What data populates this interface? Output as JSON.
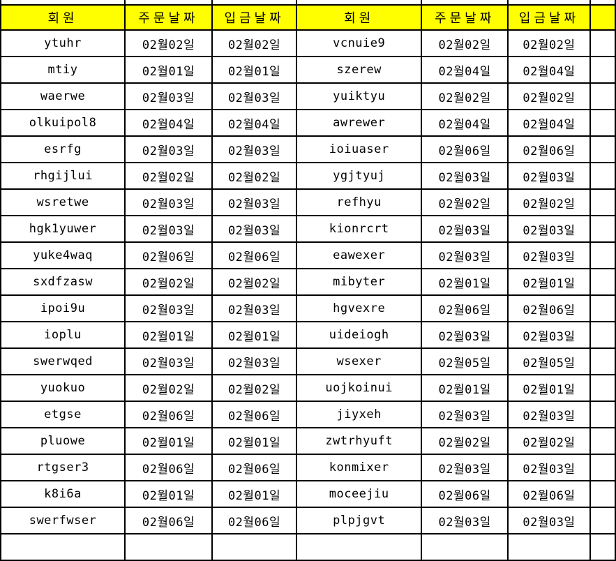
{
  "colors": {
    "header_bg": "#FFFF00",
    "grid_border": "#000000",
    "text": "#000000"
  },
  "table": {
    "header_labels": [
      "회원",
      "주문날짜",
      "입금날짜",
      "회원",
      "주문날짜",
      "입금날짜"
    ],
    "rows": [
      {
        "cells": [
          "ytuhr",
          "02월02일",
          "02월02일",
          "vcnuie9",
          "02월02일",
          "02월02일"
        ]
      },
      {
        "cells": [
          "mtiy",
          "02월01일",
          "02월01일",
          "szerew",
          "02월04일",
          "02월04일"
        ]
      },
      {
        "cells": [
          "waerwe",
          "02월03일",
          "02월03일",
          "yuiktyu",
          "02월02일",
          "02월02일"
        ]
      },
      {
        "cells": [
          "olkuipol8",
          "02월04일",
          "02월04일",
          "awrewer",
          "02월04일",
          "02월04일"
        ]
      },
      {
        "cells": [
          "esrfg",
          "02월03일",
          "02월03일",
          "ioiuaser",
          "02월06일",
          "02월06일"
        ]
      },
      {
        "cells": [
          "rhgijlui",
          "02월02일",
          "02월02일",
          "ygjtyuj",
          "02월03일",
          "02월03일"
        ]
      },
      {
        "cells": [
          "wsretwe",
          "02월03일",
          "02월03일",
          "refhyu",
          "02월02일",
          "02월02일"
        ]
      },
      {
        "cells": [
          "hgk1yuwer",
          "02월03일",
          "02월03일",
          "kionrcrt",
          "02월03일",
          "02월03일"
        ]
      },
      {
        "cells": [
          "yuke4waq",
          "02월06일",
          "02월06일",
          "eawexer",
          "02월03일",
          "02월03일"
        ]
      },
      {
        "cells": [
          "sxdfzasw",
          "02월02일",
          "02월02일",
          "mibyter",
          "02월01일",
          "02월01일"
        ]
      },
      {
        "cells": [
          "ipoi9u",
          "02월03일",
          "02월03일",
          "hgvexre",
          "02월06일",
          "02월06일"
        ]
      },
      {
        "cells": [
          "ioplu",
          "02월01일",
          "02월01일",
          "uideiogh",
          "02월03일",
          "02월03일"
        ]
      },
      {
        "cells": [
          "swerwqed",
          "02월03일",
          "02월03일",
          "wsexer",
          "02월05일",
          "02월05일"
        ]
      },
      {
        "cells": [
          "yuokuo",
          "02월02일",
          "02월02일",
          "uojkoinui",
          "02월01일",
          "02월01일"
        ]
      },
      {
        "cells": [
          "etgse",
          "02월06일",
          "02월06일",
          "jiyxeh",
          "02월03일",
          "02월03일"
        ]
      },
      {
        "cells": [
          "pluowe",
          "02월01일",
          "02월01일",
          "zwtrhyuft",
          "02월02일",
          "02월02일"
        ]
      },
      {
        "cells": [
          "rtgser3",
          "02월06일",
          "02월06일",
          "konmixer",
          "02월03일",
          "02월03일"
        ]
      },
      {
        "cells": [
          "k8i6a",
          "02월01일",
          "02월01일",
          "moceejiu",
          "02월06일",
          "02월06일"
        ]
      },
      {
        "cells": [
          "swerfwser",
          "02월06일",
          "02월06일",
          "plpjgvt",
          "02월03일",
          "02월03일"
        ]
      }
    ]
  }
}
